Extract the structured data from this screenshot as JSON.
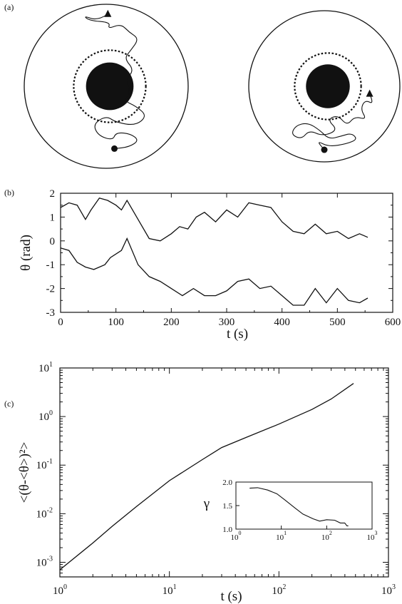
{
  "figure": {
    "panels": [
      {
        "label": "(a)"
      },
      {
        "label": "(b)"
      },
      {
        "label": "(c)"
      }
    ]
  },
  "chart_data": [
    {
      "id": "a",
      "type": "trajectory",
      "description_of_content": "two circular cells each with a central black disk and a dashed circle; particle tracks start at a triangle and end at a dot",
      "cells": [
        {
          "name": "left",
          "track": [
            [
              0.02,
              0.88
            ],
            [
              -0.1,
              0.8
            ],
            [
              -0.28,
              0.86
            ],
            [
              -0.2,
              0.8
            ],
            [
              0.05,
              0.78
            ],
            [
              0.02,
              0.7
            ],
            [
              0.18,
              0.76
            ],
            [
              0.28,
              0.66
            ],
            [
              0.4,
              0.58
            ],
            [
              0.3,
              0.44
            ],
            [
              0.22,
              0.34
            ],
            [
              0.34,
              0.2
            ],
            [
              0.24,
              0.08
            ],
            [
              0.3,
              -0.08
            ],
            [
              0.22,
              -0.18
            ],
            [
              0.36,
              -0.24
            ],
            [
              0.5,
              -0.36
            ],
            [
              0.36,
              -0.48
            ],
            [
              0.12,
              -0.44
            ],
            [
              0.0,
              -0.36
            ],
            [
              -0.16,
              -0.46
            ],
            [
              -0.1,
              -0.6
            ],
            [
              0.08,
              -0.66
            ],
            [
              0.12,
              -0.56
            ],
            [
              0.3,
              -0.58
            ],
            [
              0.4,
              -0.66
            ],
            [
              0.28,
              -0.74
            ],
            [
              0.1,
              -0.76
            ]
          ],
          "start": [
            0.02,
            0.88
          ],
          "end": [
            0.1,
            -0.76
          ]
        },
        {
          "name": "right",
          "track": [
            [
              0.6,
              -0.1
            ],
            [
              0.66,
              -0.24
            ],
            [
              0.54,
              -0.18
            ],
            [
              0.48,
              -0.3
            ],
            [
              0.56,
              -0.44
            ],
            [
              0.4,
              -0.4
            ],
            [
              0.3,
              -0.52
            ],
            [
              0.18,
              -0.38
            ],
            [
              0.04,
              -0.44
            ],
            [
              0.18,
              -0.58
            ],
            [
              -0.02,
              -0.66
            ],
            [
              -0.2,
              -0.58
            ],
            [
              -0.3,
              -0.7
            ],
            [
              -0.44,
              -0.64
            ],
            [
              -0.38,
              -0.52
            ],
            [
              -0.22,
              -0.48
            ],
            [
              -0.06,
              -0.58
            ],
            [
              0.06,
              -0.7
            ],
            [
              0.22,
              -0.66
            ],
            [
              0.36,
              -0.62
            ],
            [
              0.44,
              -0.7
            ],
            [
              0.3,
              -0.76
            ],
            [
              0.06,
              -0.8
            ],
            [
              -0.1,
              -0.72
            ],
            [
              0.0,
              -0.84
            ]
          ],
          "start": [
            0.6,
            -0.1
          ],
          "end": [
            0.0,
            -0.84
          ]
        }
      ]
    },
    {
      "id": "b",
      "type": "line",
      "xlabel": "t (s)",
      "ylabel": "θ  (rad)",
      "xlim": [
        0,
        600
      ],
      "ylim": [
        -3,
        2
      ],
      "xticks": [
        "0",
        "100",
        "200",
        "300",
        "400",
        "500",
        "600"
      ],
      "yticks": [
        "-3",
        "-2",
        "-1",
        "0",
        "1",
        "2"
      ],
      "series": [
        {
          "x": [
            0,
            15,
            30,
            45,
            55,
            70,
            85,
            100,
            110,
            120,
            140,
            160,
            180,
            200,
            215,
            230,
            245,
            260,
            280,
            300,
            320,
            340,
            360,
            380,
            400,
            420,
            440,
            460,
            480,
            500,
            520,
            540,
            555
          ],
          "values": [
            1.4,
            1.6,
            1.5,
            0.9,
            1.3,
            1.8,
            1.7,
            1.5,
            1.3,
            1.7,
            0.9,
            0.1,
            0.0,
            0.3,
            0.6,
            0.5,
            1.0,
            1.2,
            0.8,
            1.3,
            1.0,
            1.6,
            1.5,
            1.4,
            0.8,
            0.4,
            0.3,
            0.7,
            0.3,
            0.4,
            0.1,
            0.3,
            0.15
          ]
        },
        {
          "x": [
            0,
            15,
            30,
            45,
            60,
            80,
            90,
            110,
            120,
            140,
            160,
            180,
            200,
            220,
            240,
            260,
            280,
            300,
            320,
            340,
            360,
            380,
            400,
            420,
            440,
            460,
            480,
            500,
            520,
            540,
            555
          ],
          "values": [
            -0.3,
            -0.4,
            -0.9,
            -1.1,
            -1.2,
            -1.0,
            -0.7,
            -0.4,
            0.1,
            -1.0,
            -1.5,
            -1.7,
            -2.0,
            -2.3,
            -2.0,
            -2.3,
            -2.3,
            -2.1,
            -1.7,
            -1.6,
            -2.0,
            -1.9,
            -2.3,
            -2.7,
            -2.7,
            -2.0,
            -2.6,
            -2.0,
            -2.5,
            -2.6,
            -2.4
          ]
        }
      ]
    },
    {
      "id": "c",
      "type": "line",
      "xscale": "log",
      "yscale": "log",
      "xlabel": "t (s)",
      "ylabel": "<(θ-<θ>)²>",
      "xlim": [
        1,
        1000
      ],
      "ylim": [
        0.0005,
        10
      ],
      "xticks": [
        {
          "base": "10",
          "exp": "0"
        },
        {
          "base": "10",
          "exp": "1"
        },
        {
          "base": "10",
          "exp": "2"
        },
        {
          "base": "10",
          "exp": "3"
        }
      ],
      "yticks": [
        {
          "base": "10",
          "exp": "-3"
        },
        {
          "base": "10",
          "exp": "-2"
        },
        {
          "base": "10",
          "exp": "-1"
        },
        {
          "base": "10",
          "exp": "0"
        },
        {
          "base": "10",
          "exp": "1"
        }
      ],
      "series": [
        {
          "x": [
            1,
            2,
            3,
            5,
            10,
            20,
            30,
            50,
            100,
            200,
            300,
            480
          ],
          "values": [
            0.0007,
            0.0025,
            0.0055,
            0.014,
            0.048,
            0.13,
            0.23,
            0.37,
            0.7,
            1.4,
            2.3,
            4.8
          ]
        }
      ],
      "inset": {
        "type": "line",
        "xscale": "log",
        "ylabel": "γ",
        "xlim": [
          1,
          1000
        ],
        "ylim": [
          1.0,
          2.0
        ],
        "xticks": [
          {
            "base": "10",
            "exp": "0"
          },
          {
            "base": "10",
            "exp": "1"
          },
          {
            "base": "10",
            "exp": "2"
          },
          {
            "base": "10",
            "exp": "3"
          }
        ],
        "yticks": [
          "1.0",
          "1.5",
          "2.0"
        ],
        "series": [
          {
            "x": [
              2,
              3,
              5,
              8,
              12,
              20,
              30,
              50,
              70,
              100,
              150,
              200,
              250,
              280,
              300
            ],
            "values": [
              1.87,
              1.88,
              1.83,
              1.75,
              1.62,
              1.45,
              1.32,
              1.22,
              1.17,
              1.2,
              1.19,
              1.13,
              1.13,
              1.07,
              1.07
            ]
          }
        ]
      }
    }
  ]
}
